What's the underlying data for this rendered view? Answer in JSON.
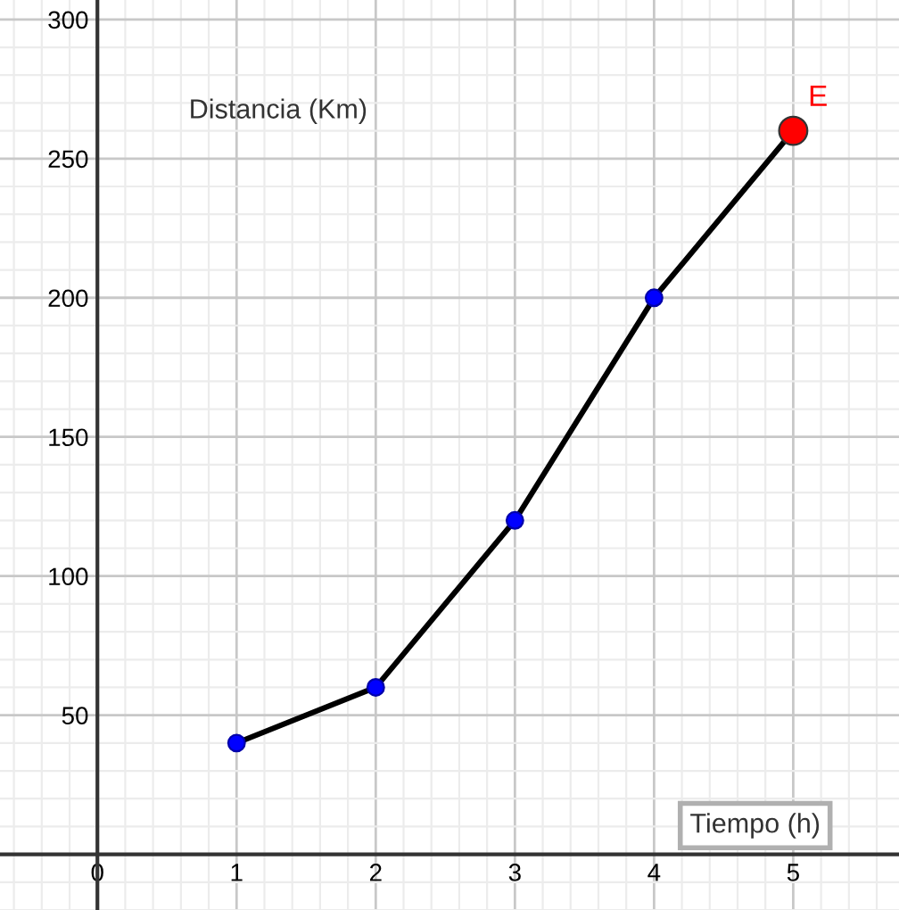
{
  "chart_data": {
    "type": "line",
    "xlabel": "Tiempo (h)",
    "ylabel": "Distancia (Km)",
    "series": [
      {
        "color": "#000000",
        "x": [
          1,
          2,
          3,
          4,
          5
        ],
        "values": [
          40,
          60,
          120,
          200,
          260
        ],
        "marker": "none"
      },
      {
        "type": "scatter",
        "color": "#0000ff",
        "x": [
          1,
          2,
          3,
          4
        ],
        "values": [
          40,
          60,
          120,
          200
        ],
        "marker": "circle"
      },
      {
        "type": "scatter",
        "name": "E",
        "color": "#ff0000",
        "x": [
          5
        ],
        "values": [
          260
        ],
        "marker": "circle"
      }
    ],
    "xlim": [
      -0.7,
      5.76
    ],
    "ylim": [
      -20,
      307
    ],
    "xticks": [
      0,
      1,
      2,
      3,
      4,
      5
    ],
    "yticks": [
      50,
      100,
      150,
      200,
      250,
      300
    ],
    "grid": true,
    "line_style": "solid"
  }
}
